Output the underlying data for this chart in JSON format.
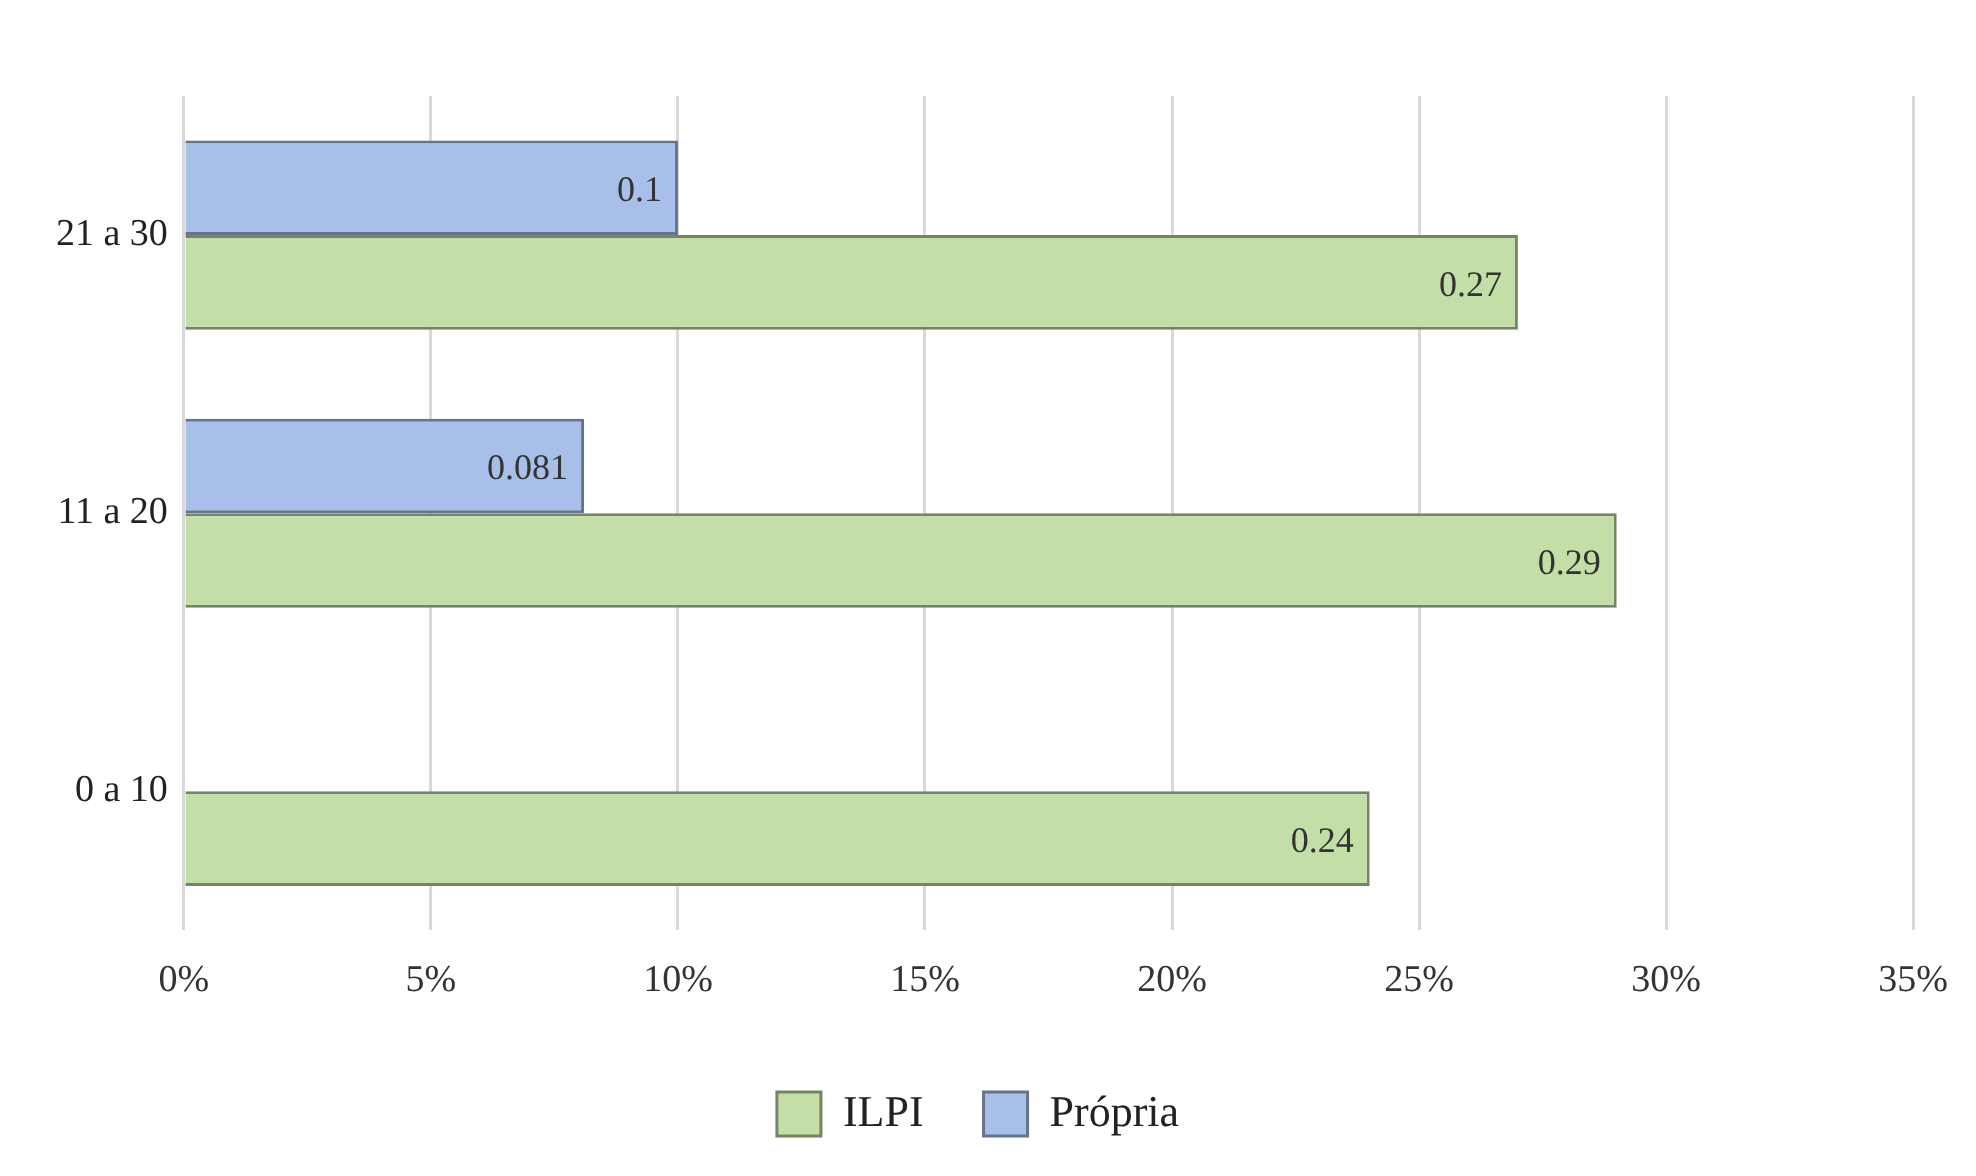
{
  "chart_data": {
    "type": "bar",
    "orientation": "horizontal",
    "categories": [
      "21 a 30",
      "11 a 20",
      "0 a 10"
    ],
    "series": [
      {
        "name": "ILPI",
        "color": "#c3dea6",
        "values": [
          0.27,
          0.29,
          0.24
        ]
      },
      {
        "name": "Própria",
        "color": "#a8bfe9",
        "values": [
          0.1,
          0.081,
          null
        ]
      }
    ],
    "xlim": [
      0,
      0.35
    ],
    "xticks": [
      {
        "value": 0,
        "label": "0%"
      },
      {
        "value": 0.05,
        "label": "5%"
      },
      {
        "value": 0.1,
        "label": "10%"
      },
      {
        "value": 0.15,
        "label": "15%"
      },
      {
        "value": 0.2,
        "label": "20%"
      },
      {
        "value": 0.25,
        "label": "25%"
      },
      {
        "value": 0.3,
        "label": "30%"
      },
      {
        "value": 0.35,
        "label": "35%"
      }
    ],
    "grid": "x",
    "legend": "bottom",
    "data_labels": true
  }
}
